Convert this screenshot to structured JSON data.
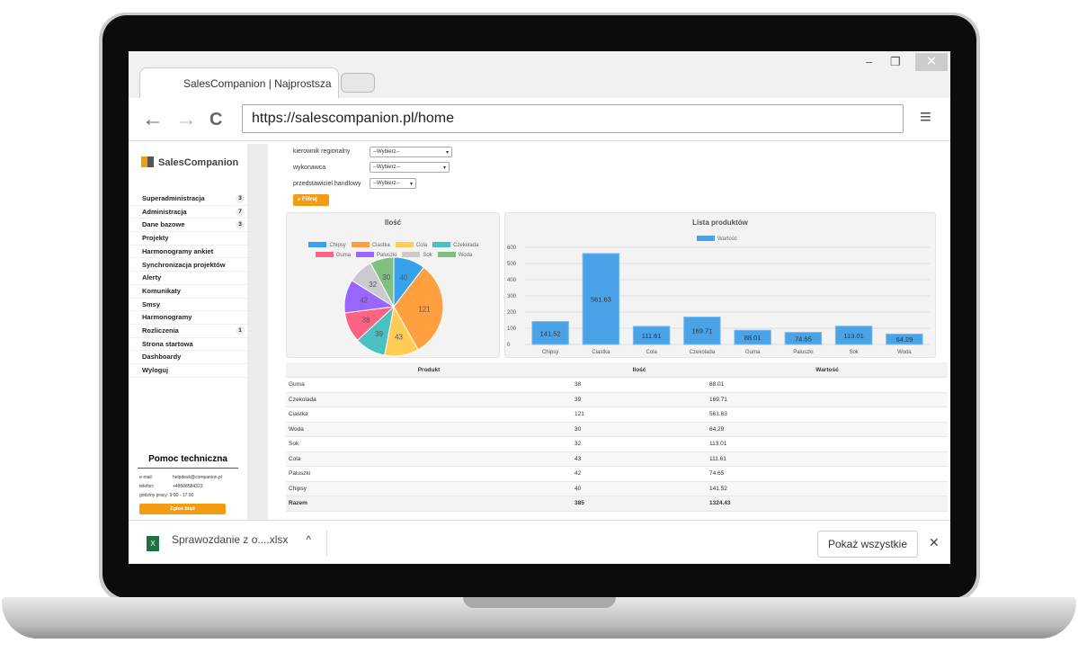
{
  "browser": {
    "tab_title": "SalesCompanion | Najprostsza",
    "url": "https://salescompanion.pl/home",
    "minimize": "–",
    "maximize": "❐",
    "close": "✕",
    "back": "←",
    "forward": "→",
    "reload": "C",
    "menu": "≡"
  },
  "sidebar": {
    "logo": "SalesCompanion",
    "items": [
      {
        "label": "Superadministracja",
        "badge": "3"
      },
      {
        "label": "Administracja",
        "badge": "7"
      },
      {
        "label": "Dane bazowe",
        "badge": "3"
      },
      {
        "label": "Projekty"
      },
      {
        "label": "Harmonogramy ankiet"
      },
      {
        "label": "Synchronizacja projektów"
      },
      {
        "label": "Alerty"
      },
      {
        "label": "Komunikaty"
      },
      {
        "label": "Smsy"
      },
      {
        "label": "Harmonogramy"
      },
      {
        "label": "Rozliczenia",
        "badge": "1"
      },
      {
        "label": "Strona startowa"
      },
      {
        "label": "Dashboardy"
      },
      {
        "label": "Wyloguj"
      }
    ],
    "help": {
      "title": "Pomoc techniczna",
      "email_label": "e-mail:",
      "email": "helpdesk@companion.pl",
      "phone_label": "telefon:",
      "phone": "+48508584323",
      "hours": "godziny pracy: 9:00 - 17:00",
      "report_button": "Zgłoś błąd"
    }
  },
  "filters": [
    {
      "label": "kierownik regionalny",
      "value": "--Wybierz--"
    },
    {
      "label": "wykonawca",
      "value": "--Wybierz--"
    },
    {
      "label": "przedstawiciel handlowy",
      "value": "--Wybierz--"
    }
  ],
  "filter_button": "Filtruj",
  "chart_data": [
    {
      "type": "pie",
      "title": "Ilość",
      "categories": [
        "Chipsy",
        "Ciastka",
        "Cola",
        "Czekolada",
        "Guma",
        "Paluszki",
        "Sok",
        "Woda"
      ],
      "values": [
        40,
        121,
        43,
        39,
        38,
        42,
        32,
        30
      ],
      "colors": [
        "#36a2eb",
        "#ff9f40",
        "#ffcd56",
        "#4bc0c0",
        "#ff6384",
        "#9966ff",
        "#c9cbcf",
        "#7fbf7f"
      ],
      "legend": "top"
    },
    {
      "type": "bar",
      "title": "Lista produktów",
      "series": [
        {
          "name": "Wartość",
          "values": [
            141.52,
            561.63,
            111.61,
            169.71,
            88.01,
            74.65,
            113.01,
            64.29
          ]
        }
      ],
      "categories": [
        "Chipsy",
        "Ciastka",
        "Cola",
        "Czekolada",
        "Guma",
        "Paluszki",
        "Sok",
        "Woda"
      ],
      "yticks": [
        "0",
        "100",
        "200",
        "300",
        "400",
        "500",
        "600"
      ],
      "ylim": [
        0,
        600
      ],
      "color": "#4aa3e6",
      "legend": "top",
      "grid": true
    }
  ],
  "table": {
    "headers": [
      "Produkt",
      "Ilość",
      "Wartość"
    ],
    "rows": [
      [
        "Guma",
        "38",
        "88.01"
      ],
      [
        "Czekolada",
        "39",
        "169.71"
      ],
      [
        "Ciastka",
        "121",
        "561.63"
      ],
      [
        "Woda",
        "30",
        "64.29"
      ],
      [
        "Sok",
        "32",
        "113.01"
      ],
      [
        "Cola",
        "43",
        "111.61"
      ],
      [
        "Paluszki",
        "42",
        "74.65"
      ],
      [
        "Chipsy",
        "40",
        "141.52"
      ]
    ],
    "total": [
      "Razem",
      "385",
      "1324.43"
    ]
  },
  "download": {
    "file": "Sprawozdanie z o....xlsx",
    "file_icon": "X",
    "chevron": "^",
    "show_all": "Pokaż wszystkie",
    "close": "✕"
  }
}
